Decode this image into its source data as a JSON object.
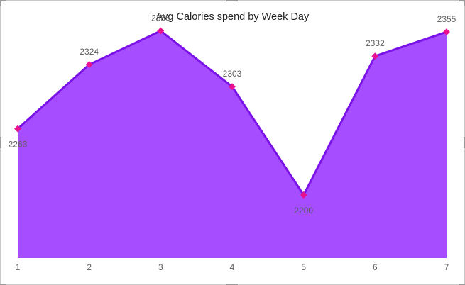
{
  "chart_data": {
    "type": "area",
    "title": "Avg Calories spend by Week Day",
    "xlabel": "",
    "ylabel": "",
    "x": [
      "1",
      "2",
      "3",
      "4",
      "5",
      "6",
      "7"
    ],
    "series": [
      {
        "values": [
          2263,
          2324,
          2356,
          2303,
          2200,
          2332,
          2355
        ]
      }
    ],
    "ylim": [
      2140,
      2380
    ],
    "grid": false,
    "data_labels": true,
    "colors": {
      "fill": "#A54DFF",
      "line": "#7B12E8",
      "marker": "#E8118F"
    }
  }
}
